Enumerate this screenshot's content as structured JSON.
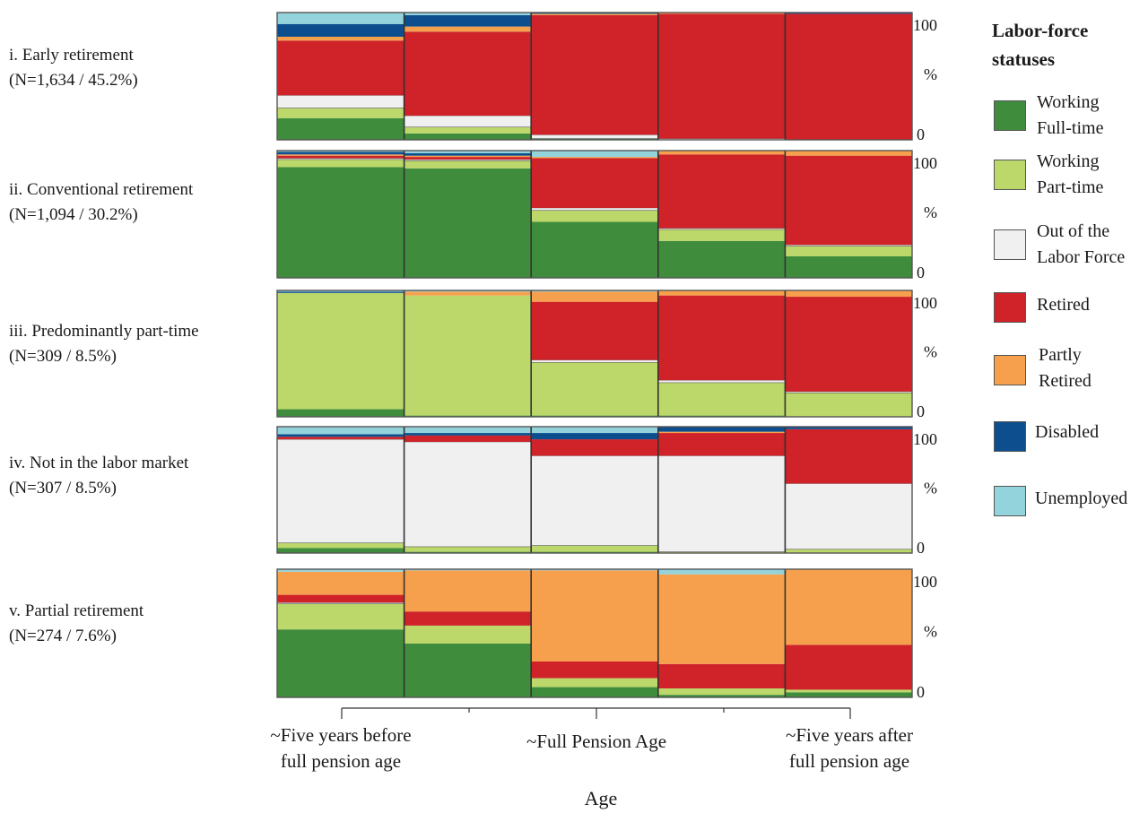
{
  "chart_data": {
    "type": "stacked-bar",
    "x_axis_label": "Age",
    "x_tick_labels": [
      "~Five years before\nfull pension age",
      "~Full Pension Age",
      "~Five years after\nfull pension age"
    ],
    "y_tick_labels": [
      "100",
      "%",
      "0"
    ],
    "legend_title": "Labor-force statuses",
    "statuses": [
      {
        "key": "ft",
        "label": "Working\nFull-time",
        "color": "#3f8c3c"
      },
      {
        "key": "pt",
        "label": "Working\nPart-time",
        "color": "#bcd76a"
      },
      {
        "key": "olf",
        "label": "Out of the\nLabor Force",
        "color": "#f0f0f0"
      },
      {
        "key": "ret",
        "label": "Retired",
        "color": "#cf2229"
      },
      {
        "key": "part",
        "label": "Partly\nRetired",
        "color": "#f6a04d"
      },
      {
        "key": "dis",
        "label": "Disabled",
        "color": "#0d4e8f"
      },
      {
        "key": "unemp",
        "label": "Unemployed",
        "color": "#93d3dc"
      }
    ],
    "panels": [
      {
        "title_line1": "i. Early retirement",
        "title_line2": "(N=1,634 / 45.2%)",
        "bars": [
          {
            "ft": 17,
            "pt": 8,
            "olf": 10,
            "ret": 43,
            "part": 3,
            "dis": 10,
            "unemp": 9
          },
          {
            "ft": 5,
            "pt": 5,
            "olf": 9,
            "ret": 66,
            "part": 4,
            "dis": 9,
            "unemp": 2
          },
          {
            "ft": 1,
            "pt": 0,
            "olf": 3,
            "ret": 94,
            "part": 1,
            "dis": 1,
            "unemp": 0
          },
          {
            "ft": 0,
            "pt": 0,
            "olf": 1,
            "ret": 98,
            "part": 1,
            "dis": 0,
            "unemp": 0
          },
          {
            "ft": 0,
            "pt": 0,
            "olf": 0,
            "ret": 99,
            "part": 0,
            "dis": 1,
            "unemp": 0
          }
        ]
      },
      {
        "title_line1": "ii. Conventional retirement",
        "title_line2": "(N=1,094 / 30.2%)",
        "bars": [
          {
            "ft": 87,
            "pt": 6,
            "olf": 1,
            "ret": 2,
            "part": 1,
            "dis": 2,
            "unemp": 1
          },
          {
            "ft": 86,
            "pt": 6,
            "olf": 1,
            "ret": 2,
            "part": 1,
            "dis": 2,
            "unemp": 2
          },
          {
            "ft": 44,
            "pt": 9,
            "olf": 2,
            "ret": 39,
            "part": 1,
            "dis": 0,
            "unemp": 5
          },
          {
            "ft": 29,
            "pt": 9,
            "olf": 1,
            "ret": 58,
            "part": 3,
            "dis": 0,
            "unemp": 0
          },
          {
            "ft": 17,
            "pt": 8,
            "olf": 1,
            "ret": 70,
            "part": 4,
            "dis": 0,
            "unemp": 0
          }
        ]
      },
      {
        "title_line1": "iii. Predominantly part-time",
        "title_line2": "(N=309 / 8.5%)",
        "bars": [
          {
            "ft": 6,
            "pt": 92,
            "olf": 0,
            "ret": 0,
            "part": 0,
            "dis": 1,
            "unemp": 1
          },
          {
            "ft": 1,
            "pt": 95,
            "olf": 0,
            "ret": 0,
            "part": 3,
            "dis": 0,
            "unemp": 1
          },
          {
            "ft": 1,
            "pt": 42,
            "olf": 2,
            "ret": 46,
            "part": 8,
            "dis": 0,
            "unemp": 1
          },
          {
            "ft": 1,
            "pt": 26,
            "olf": 2,
            "ret": 67,
            "part": 4,
            "dis": 0,
            "unemp": 0
          },
          {
            "ft": 0,
            "pt": 19,
            "olf": 1,
            "ret": 75,
            "part": 5,
            "dis": 0,
            "unemp": 0
          }
        ]
      },
      {
        "title_line1": "iv. Not in the labor market",
        "title_line2": "(N=307 / 8.5%)",
        "bars": [
          {
            "ft": 4,
            "pt": 4,
            "olf": 82,
            "ret": 2,
            "part": 0,
            "dis": 2,
            "unemp": 6
          },
          {
            "ft": 1,
            "pt": 4,
            "olf": 83,
            "ret": 5,
            "part": 0,
            "dis": 2,
            "unemp": 5
          },
          {
            "ft": 1,
            "pt": 5,
            "olf": 71,
            "ret": 13,
            "part": 0,
            "dis": 5,
            "unemp": 5
          },
          {
            "ft": 0,
            "pt": 1,
            "olf": 76,
            "ret": 18,
            "part": 1,
            "dis": 4,
            "unemp": 0
          },
          {
            "ft": 0,
            "pt": 3,
            "olf": 52,
            "ret": 43,
            "part": 0,
            "dis": 2,
            "unemp": 0
          }
        ]
      },
      {
        "title_line1": "v. Partial retirement",
        "title_line2": "(N=274 / 7.6%)",
        "bars": [
          {
            "ft": 53,
            "pt": 20,
            "olf": 1,
            "ret": 6,
            "part": 18,
            "dis": 0,
            "unemp": 2
          },
          {
            "ft": 42,
            "pt": 14,
            "olf": 0,
            "ret": 11,
            "part": 32,
            "dis": 0,
            "unemp": 1
          },
          {
            "ft": 8,
            "pt": 7,
            "olf": 0,
            "ret": 13,
            "part": 71,
            "dis": 0,
            "unemp": 1
          },
          {
            "ft": 2,
            "pt": 5,
            "olf": 0,
            "ret": 19,
            "part": 70,
            "dis": 0,
            "unemp": 4
          },
          {
            "ft": 4,
            "pt": 2,
            "olf": 0,
            "ret": 35,
            "part": 59,
            "dis": 0,
            "unemp": 0
          }
        ]
      }
    ],
    "ylim": [
      0,
      100
    ]
  }
}
